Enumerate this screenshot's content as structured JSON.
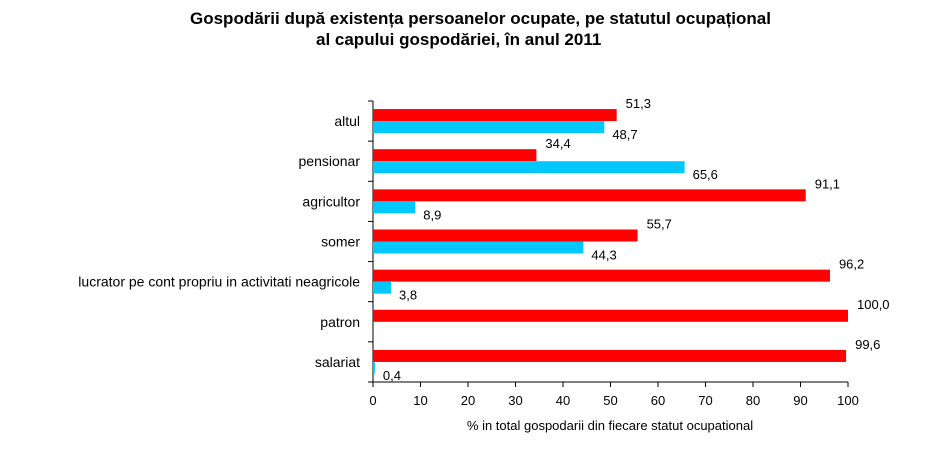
{
  "chart_data": {
    "type": "bar",
    "orientation": "horizontal",
    "title_line1": "Gospodării după existența persoanelor ocupate, pe statutul ocupațional",
    "title_line2": "al capului gospodăriei, în anul 2011",
    "xlabel": "% in total gospodarii din fiecare statut ocupational",
    "xlim": [
      0,
      100
    ],
    "xticks": [
      0,
      10,
      20,
      30,
      40,
      50,
      60,
      70,
      80,
      90,
      100
    ],
    "categories": [
      "altul",
      "pensionar",
      "agricultor",
      "somer",
      "lucrator pe cont propriu in activitati neagricole",
      "patron",
      "salariat"
    ],
    "series": [
      {
        "name": "series-red",
        "color": "#ff0000",
        "values": [
          51.3,
          34.4,
          91.1,
          55.7,
          96.2,
          100.0,
          99.6
        ],
        "labels": [
          "51,3",
          "34,4",
          "91,1",
          "55,7",
          "96,2",
          "100,0",
          "99,6"
        ]
      },
      {
        "name": "series-cyan",
        "color": "#00c8ff",
        "values": [
          48.7,
          65.6,
          8.9,
          44.3,
          3.8,
          null,
          0.4
        ],
        "labels": [
          "48,7",
          "65,6",
          "8,9",
          "44,3",
          "3,8",
          null,
          "0,4"
        ]
      }
    ]
  }
}
